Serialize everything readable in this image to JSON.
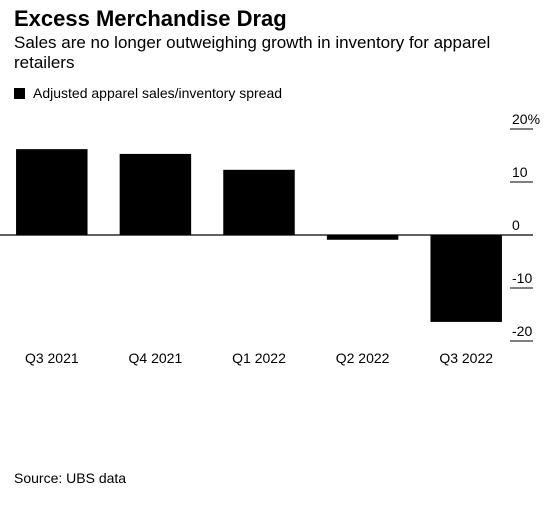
{
  "chart_data": {
    "type": "bar",
    "title": "Excess Merchandise Drag",
    "subtitle": "Sales are no longer outweighing growth in inventory for apparel retailers",
    "categories": [
      "Q3 2021",
      "Q4 2021",
      "Q1 2022",
      "Q2 2022",
      "Q3 2022"
    ],
    "series": [
      {
        "name": "Adjusted apparel sales/inventory spread",
        "color": "#000000",
        "values": [
          16.2,
          15.3,
          12.3,
          -0.9,
          -16.4
        ]
      }
    ],
    "ylim": [
      -20,
      20
    ],
    "yticks": [
      {
        "value": 20,
        "label": "20%"
      },
      10,
      0,
      -10,
      -20
    ],
    "source": "Source: UBS data"
  }
}
